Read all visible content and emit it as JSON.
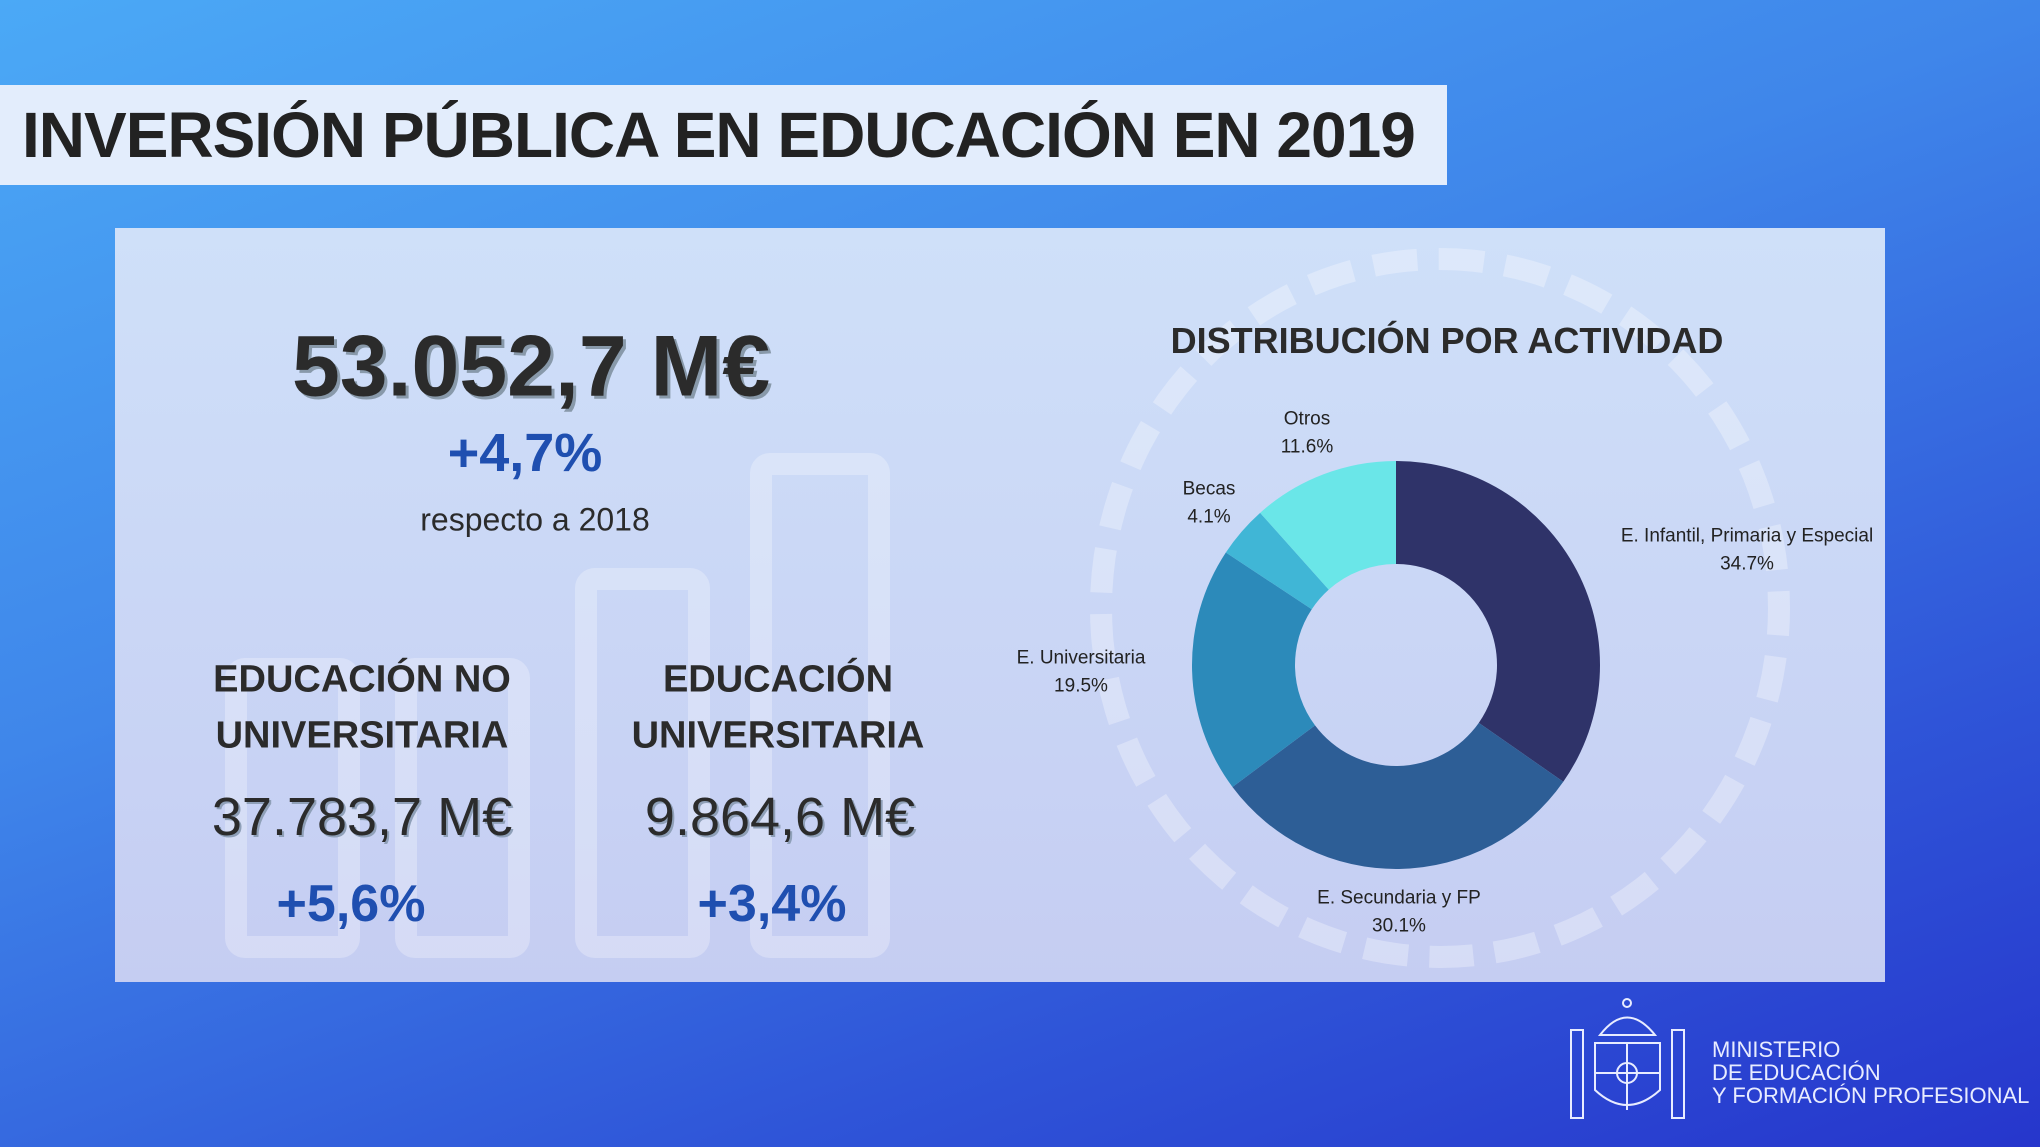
{
  "title": "INVERSIÓN PÚBLICA EN EDUCACIÓN EN 2019",
  "total": {
    "value": "53.052,7 M€",
    "change": "+4,7%",
    "note": "respecto a 2018"
  },
  "no_universitaria": {
    "heading1": "EDUCACIÓN NO",
    "heading2": "UNIVERSITARIA",
    "value": "37.783,7 M€",
    "change": "+5,6%"
  },
  "universitaria": {
    "heading1": "EDUCACIÓN",
    "heading2": "UNIVERSITARIA",
    "value": "9.864,6 M€",
    "change": "+3,4%"
  },
  "chart_data": {
    "type": "pie",
    "variant": "donut",
    "title": "DISTRIBUCIÓN POR ACTIVIDAD",
    "categories": [
      "E. Infantil, Primaria y Especial",
      "E. Secundaria y FP",
      "E. Universitaria",
      "Becas",
      "Otros"
    ],
    "values": [
      34.7,
      30.1,
      19.5,
      4.1,
      11.6
    ],
    "labels": [
      "34.7%",
      "30.1%",
      "19.5%",
      "4.1%",
      "11.6%"
    ],
    "colors": [
      "#2f3369",
      "#2d5e96",
      "#2c8aba",
      "#40b6d6",
      "#6ae6e8"
    ]
  },
  "logo": {
    "line1": "MINISTERIO",
    "line2": "DE EDUCACIÓN",
    "line3": "Y FORMACIÓN PROFESIONAL"
  }
}
